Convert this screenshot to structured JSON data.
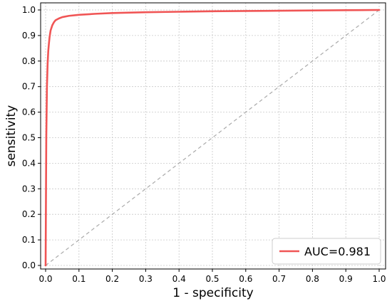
{
  "chart_data": {
    "type": "line",
    "title": "",
    "xlabel": "1 - specificity",
    "ylabel": "sensitivity",
    "xlim": [
      0,
      1.0
    ],
    "ylim": [
      0,
      1.0
    ],
    "grid": true,
    "legend_position": "bottom-right",
    "x_ticks": [
      "0.0",
      "0.1",
      "0.2",
      "0.3",
      "0.4",
      "0.5",
      "0.6",
      "0.7",
      "0.8",
      "0.9",
      "1.0"
    ],
    "y_ticks": [
      "0.0",
      "0.1",
      "0.2",
      "0.3",
      "0.4",
      "0.5",
      "0.6",
      "0.7",
      "0.8",
      "0.9",
      "1.0"
    ],
    "series": [
      {
        "name": "AUC=0.981",
        "color": "#f05555",
        "x": [
          0.0,
          0.002,
          0.004,
          0.006,
          0.008,
          0.01,
          0.012,
          0.015,
          0.02,
          0.025,
          0.03,
          0.04,
          0.05,
          0.07,
          0.1,
          0.15,
          0.2,
          0.3,
          0.4,
          0.5,
          0.6,
          0.7,
          0.8,
          0.9,
          1.0
        ],
        "y": [
          0.0,
          0.5,
          0.7,
          0.79,
          0.84,
          0.87,
          0.895,
          0.92,
          0.94,
          0.952,
          0.96,
          0.967,
          0.972,
          0.977,
          0.981,
          0.985,
          0.988,
          0.991,
          0.993,
          0.995,
          0.996,
          0.997,
          0.998,
          0.999,
          1.0
        ]
      }
    ],
    "reference_line": {
      "style": "dashed",
      "color": "#aaaaaa",
      "x": [
        0,
        1
      ],
      "y": [
        0,
        1
      ]
    }
  }
}
